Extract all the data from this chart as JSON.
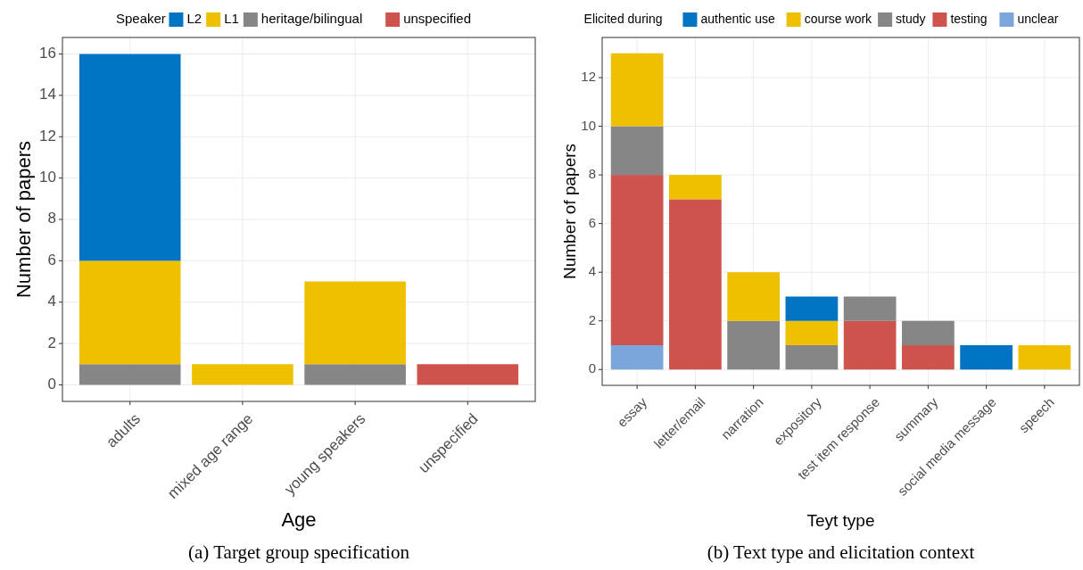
{
  "chart_data": [
    {
      "type": "bar",
      "stacked": true,
      "xlabel": "Age",
      "ylabel": "Number of papers",
      "legend_title": "Speaker",
      "legend": "top",
      "grid": true,
      "categories": [
        "adults",
        "mixed age range",
        "young speakers",
        "unspecified"
      ],
      "ylim": [
        -0.8,
        16.8
      ],
      "yticks": [
        0,
        2,
        4,
        6,
        8,
        10,
        12,
        14,
        16
      ],
      "series": [
        {
          "name": "unspecified",
          "color": "#cd534c",
          "values": [
            0,
            0,
            0,
            1
          ]
        },
        {
          "name": "heritage/bilingual",
          "color": "#868686",
          "values": [
            1,
            0,
            1,
            0
          ]
        },
        {
          "name": "L1",
          "color": "#efc000",
          "values": [
            5,
            1,
            4,
            0
          ]
        },
        {
          "name": "L2",
          "color": "#0073c2",
          "values": [
            10,
            0,
            0,
            0
          ]
        }
      ],
      "annotations": [
        "(a) Target group specification"
      ]
    },
    {
      "type": "bar",
      "stacked": true,
      "xlabel": "Teyt type",
      "ylabel": "Number of papers",
      "legend_title": "Elicited during",
      "legend": "top",
      "grid": true,
      "categories": [
        "essay",
        "letter/email",
        "narration",
        "expository",
        "test item response",
        "summary",
        "social media message",
        "speech"
      ],
      "ylim": [
        -0.65,
        13.65
      ],
      "yticks": [
        0,
        2,
        4,
        6,
        8,
        10,
        12
      ],
      "series": [
        {
          "name": "unclear",
          "color": "#7aa6dc",
          "values": [
            1,
            0,
            0,
            0,
            0,
            0,
            0,
            0
          ]
        },
        {
          "name": "testing",
          "color": "#cd534c",
          "values": [
            7,
            7,
            0,
            0,
            2,
            1,
            0,
            0
          ]
        },
        {
          "name": "study",
          "color": "#868686",
          "values": [
            2,
            0,
            2,
            1,
            1,
            1,
            0,
            0
          ]
        },
        {
          "name": "course work",
          "color": "#efc000",
          "values": [
            3,
            1,
            2,
            1,
            0,
            0,
            0,
            1
          ]
        },
        {
          "name": "authentic use",
          "color": "#0073c2",
          "values": [
            0,
            0,
            0,
            1,
            0,
            0,
            1,
            0
          ]
        }
      ],
      "annotations": [
        "(b) Text type and elicitation context"
      ]
    }
  ]
}
